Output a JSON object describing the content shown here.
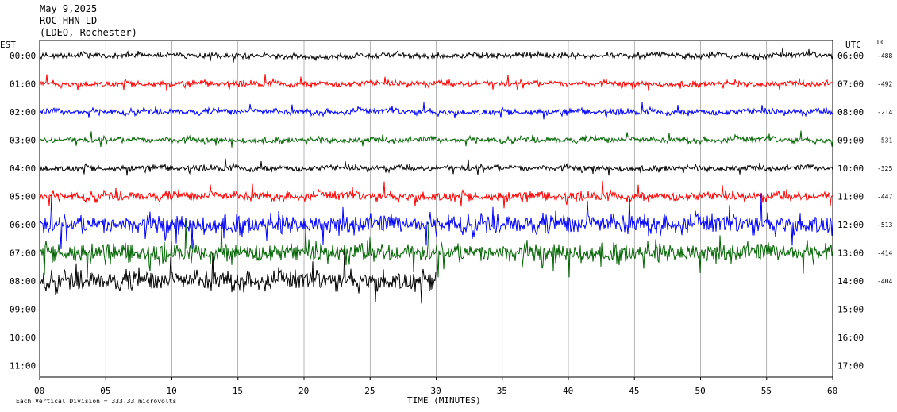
{
  "header": {
    "line1": "May 9,2025",
    "line2": "ROC HHN LD --",
    "line3": "(LDEO, Rochester)"
  },
  "left_axis_title": "EST",
  "right_axis_title": "UTC",
  "dc_title": "DC",
  "chart_data": {
    "type": "line",
    "xlabel": "TIME (MINUTES)",
    "xlim": [
      0,
      60
    ],
    "x_ticks": [
      "00",
      "05",
      "10",
      "15",
      "20",
      "25",
      "30",
      "35",
      "40",
      "45",
      "50",
      "55",
      "60"
    ],
    "scale_note": "Each Vertical Division =  333.33 microvolts",
    "rows": [
      {
        "est": "00:00",
        "utc": "06:00",
        "dc": "-488",
        "color": "#000000",
        "end_minute": 60,
        "amplitude": "low"
      },
      {
        "est": "01:00",
        "utc": "07:00",
        "dc": "-492",
        "color": "#ff0000",
        "end_minute": 60,
        "amplitude": "low"
      },
      {
        "est": "02:00",
        "utc": "08:00",
        "dc": "-214",
        "color": "#0000ff",
        "end_minute": 60,
        "amplitude": "low"
      },
      {
        "est": "03:00",
        "utc": "09:00",
        "dc": "-531",
        "color": "#006400",
        "end_minute": 60,
        "amplitude": "low"
      },
      {
        "est": "04:00",
        "utc": "10:00",
        "dc": "-325",
        "color": "#000000",
        "end_minute": 60,
        "amplitude": "low"
      },
      {
        "est": "05:00",
        "utc": "11:00",
        "dc": "-447",
        "color": "#ff0000",
        "end_minute": 60,
        "amplitude": "medium"
      },
      {
        "est": "06:00",
        "utc": "12:00",
        "dc": "-513",
        "color": "#0000ff",
        "end_minute": 60,
        "amplitude": "high"
      },
      {
        "est": "07:00",
        "utc": "13:00",
        "dc": "-414",
        "color": "#006400",
        "end_minute": 60,
        "amplitude": "high"
      },
      {
        "est": "08:00",
        "utc": "14:00",
        "dc": "-404",
        "color": "#000000",
        "end_minute": 30,
        "amplitude": "high"
      },
      {
        "est": "09:00",
        "utc": "15:00",
        "dc": "",
        "color": "#000000",
        "end_minute": 0,
        "amplitude": "none"
      },
      {
        "est": "10:00",
        "utc": "16:00",
        "dc": "",
        "color": "#000000",
        "end_minute": 0,
        "amplitude": "none"
      },
      {
        "est": "11:00",
        "utc": "17:00",
        "dc": "",
        "color": "#000000",
        "end_minute": 0,
        "amplitude": "none"
      }
    ],
    "grid": true
  }
}
